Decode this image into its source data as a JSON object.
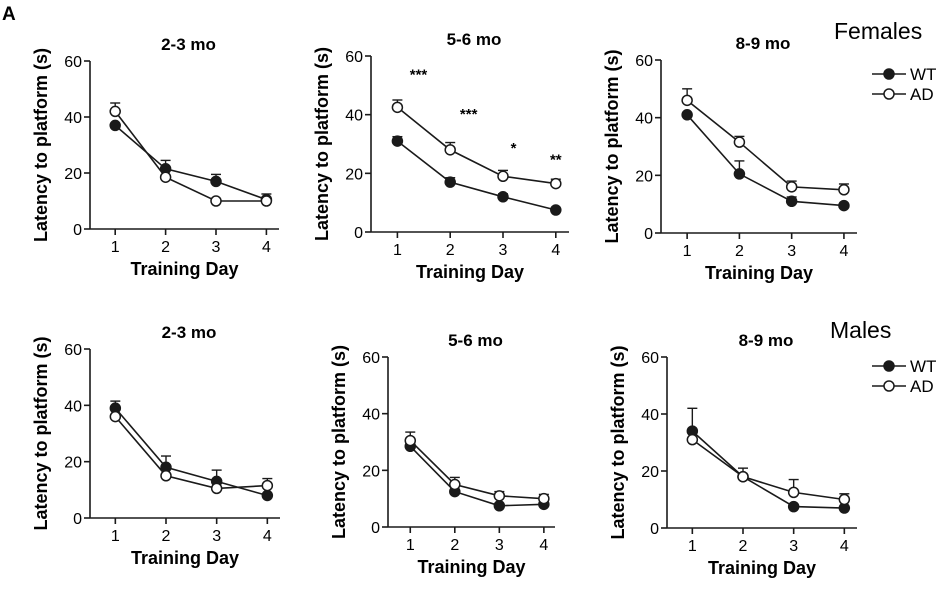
{
  "figure": {
    "panel_letter": "A",
    "groups": {
      "females": "Females",
      "males": "Males"
    },
    "legend": {
      "wt": "WT",
      "ad": "AD"
    }
  },
  "chart_data": [
    {
      "type": "line",
      "group": "Females",
      "title": "2-3 mo",
      "xlabel": "Training Day",
      "ylabel": "Latency to platform (s)",
      "x": [
        1,
        2,
        3,
        4
      ],
      "xlim": [
        0.5,
        4.25
      ],
      "ylim": [
        0,
        60
      ],
      "yticks": [
        0,
        20,
        40,
        60
      ],
      "series": [
        {
          "name": "WT",
          "marker": "filled",
          "values": [
            37,
            21.5,
            17,
            10.5
          ],
          "err": [
            0,
            3,
            2.5,
            2
          ]
        },
        {
          "name": "AD",
          "marker": "open",
          "values": [
            42,
            18.5,
            10,
            10
          ],
          "err": [
            3,
            0,
            0,
            0
          ]
        }
      ],
      "annotations": []
    },
    {
      "type": "line",
      "group": "Females",
      "title": "5-6 mo",
      "xlabel": "Training Day",
      "ylabel": "Latency to platform (s)",
      "x": [
        1,
        2,
        3,
        4
      ],
      "xlim": [
        0.5,
        4.25
      ],
      "ylim": [
        0,
        60
      ],
      "yticks": [
        0,
        20,
        40,
        60
      ],
      "series": [
        {
          "name": "WT",
          "marker": "filled",
          "values": [
            31,
            17,
            12,
            7.5
          ],
          "err": [
            1.5,
            1.5,
            1,
            0
          ]
        },
        {
          "name": "AD",
          "marker": "open",
          "values": [
            42.5,
            28,
            19,
            16.5
          ],
          "err": [
            2.5,
            2.5,
            2,
            1.5
          ]
        }
      ],
      "annotations": [
        {
          "x": 1.4,
          "y": 52,
          "text": "***"
        },
        {
          "x": 2.35,
          "y": 38.5,
          "text": "***"
        },
        {
          "x": 3.2,
          "y": 27,
          "text": "*"
        },
        {
          "x": 4,
          "y": 23,
          "text": "**"
        }
      ]
    },
    {
      "type": "line",
      "group": "Females",
      "title": "8-9 mo",
      "xlabel": "Training Day",
      "ylabel": "Latency to platform (s)",
      "x": [
        1,
        2,
        3,
        4
      ],
      "xlim": [
        0.5,
        4.25
      ],
      "ylim": [
        0,
        60
      ],
      "yticks": [
        0,
        20,
        40,
        60
      ],
      "series": [
        {
          "name": "WT",
          "marker": "filled",
          "values": [
            41,
            20.5,
            11,
            9.5
          ],
          "err": [
            0,
            4.5,
            1.5,
            0
          ]
        },
        {
          "name": "AD",
          "marker": "open",
          "values": [
            46,
            31.5,
            16,
            15
          ],
          "err": [
            4,
            2,
            2,
            2
          ]
        }
      ],
      "annotations": []
    },
    {
      "type": "line",
      "group": "Males",
      "title": "2-3 mo",
      "xlabel": "Training Day",
      "ylabel": "Latency to platform (s)",
      "x": [
        1,
        2,
        3,
        4
      ],
      "xlim": [
        0.5,
        4.25
      ],
      "ylim": [
        0,
        60
      ],
      "yticks": [
        0,
        20,
        40,
        60
      ],
      "series": [
        {
          "name": "WT",
          "marker": "filled",
          "values": [
            39,
            18,
            13,
            8
          ],
          "err": [
            2.5,
            4,
            4,
            0
          ]
        },
        {
          "name": "AD",
          "marker": "open",
          "values": [
            36,
            15,
            10.5,
            11.5
          ],
          "err": [
            0,
            0,
            0,
            2.5
          ]
        }
      ],
      "annotations": []
    },
    {
      "type": "line",
      "group": "Males",
      "title": "5-6 mo",
      "xlabel": "Training Day",
      "ylabel": "Latency to platform (s)",
      "x": [
        1,
        2,
        3,
        4
      ],
      "xlim": [
        0.5,
        4.25
      ],
      "ylim": [
        0,
        60
      ],
      "yticks": [
        0,
        20,
        40,
        60
      ],
      "series": [
        {
          "name": "WT",
          "marker": "filled",
          "values": [
            28.5,
            12.5,
            7.5,
            8
          ],
          "err": [
            0,
            0,
            0,
            0
          ]
        },
        {
          "name": "AD",
          "marker": "open",
          "values": [
            30.5,
            15,
            11,
            10
          ],
          "err": [
            3,
            2.5,
            1.5,
            1.5
          ]
        }
      ],
      "annotations": []
    },
    {
      "type": "line",
      "group": "Males",
      "title": "8-9 mo",
      "xlabel": "Training Day",
      "ylabel": "Latency to platform (s)",
      "x": [
        1,
        2,
        3,
        4
      ],
      "xlim": [
        0.5,
        4.25
      ],
      "ylim": [
        0,
        60
      ],
      "yticks": [
        0,
        20,
        40,
        60
      ],
      "series": [
        {
          "name": "WT",
          "marker": "filled",
          "values": [
            34,
            18,
            7.5,
            7
          ],
          "err": [
            8,
            3,
            0,
            0
          ]
        },
        {
          "name": "AD",
          "marker": "open",
          "values": [
            31,
            18,
            12.5,
            10
          ],
          "err": [
            0,
            0,
            4.5,
            2
          ]
        }
      ],
      "annotations": []
    }
  ]
}
